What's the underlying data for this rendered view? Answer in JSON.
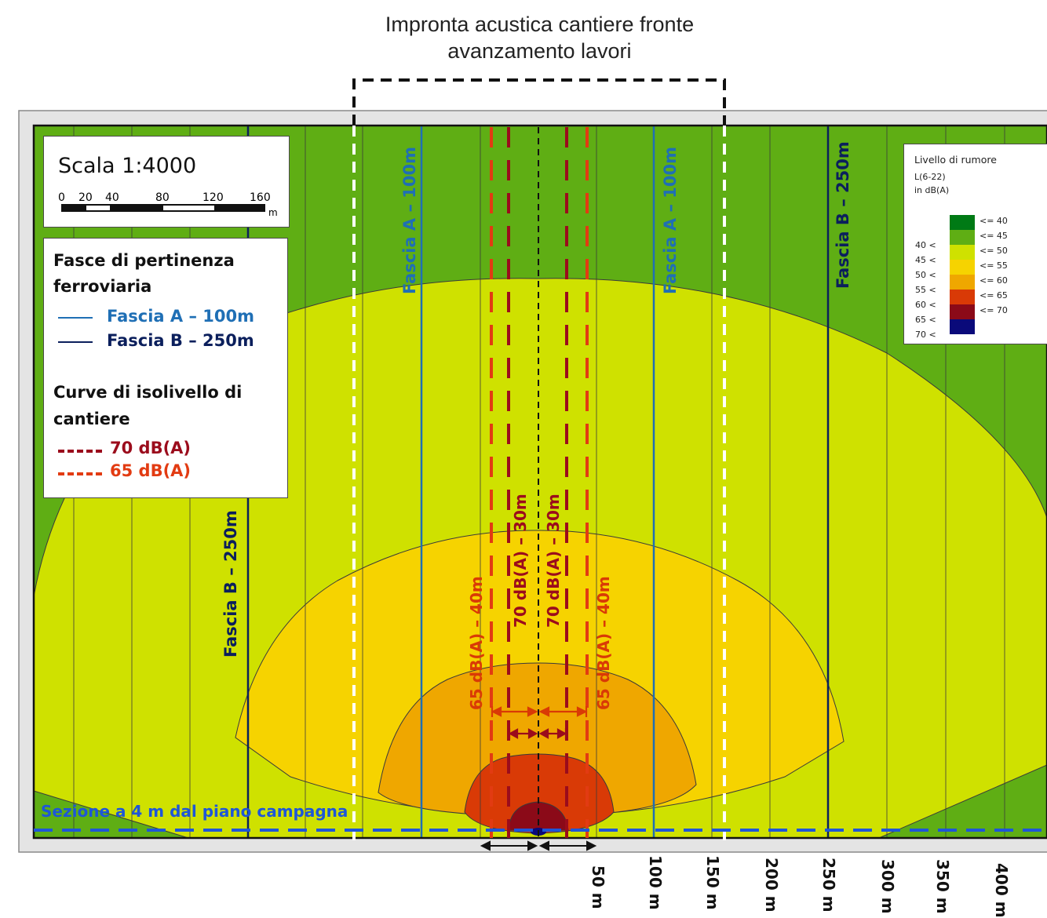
{
  "title_line1": "Impronta acustica cantiere fronte",
  "title_line2": "avanzamento lavori",
  "scale": {
    "title": "Scala 1:4000",
    "ticks": [
      "0",
      "20",
      "40",
      "80",
      "120",
      "160"
    ],
    "unit": "m"
  },
  "legend": {
    "heading_line1": "Fasce di pertinenza",
    "heading_line2": "ferroviaria",
    "fascia_a": "Fascia A – 100m",
    "fascia_b": "Fascia B – 250m",
    "curves_line1": "Curve di isolivello di",
    "curves_line2": "cantiere",
    "curve_70": "70 dB(A)",
    "curve_65": "65 dB(A)"
  },
  "noise_legend": {
    "title": "Livello di rumore",
    "metric": "L(6-22)",
    "unit": "in dB(A)",
    "classes": [
      {
        "low": "",
        "high": "<= 40",
        "color": "#007a15"
      },
      {
        "low": "40 <",
        "high": "<= 45",
        "color": "#5fae14"
      },
      {
        "low": "45 <",
        "high": "<= 50",
        "color": "#cfe100"
      },
      {
        "low": "50 <",
        "high": "<= 55",
        "color": "#f6d300"
      },
      {
        "low": "55 <",
        "high": "<= 60",
        "color": "#efa700"
      },
      {
        "low": "60 <",
        "high": "<= 65",
        "color": "#d93a06"
      },
      {
        "low": "65 <",
        "high": "<= 70",
        "color": "#8b0a18"
      },
      {
        "low": "70 <",
        "high": "",
        "color": "#0a0a7a"
      }
    ]
  },
  "map_labels": {
    "fascia_a_left": "Fascia A – 100m",
    "fascia_a_right": "Fascia A – 100m",
    "fascia_b_left": "Fascia B – 250m",
    "fascia_b_right": "Fascia B – 250m",
    "iso_65_left": "65 dB(A) – 40m",
    "iso_70_left": "70 dB(A) – 30m",
    "iso_70_right": "70 dB(A) – 30m",
    "iso_65_right": "65 dB(A) – 40m",
    "section": "Sezione a 4 m dal piano campagna"
  },
  "distances": [
    "50 m",
    "100 m",
    "150 m",
    "200 m",
    "250 m",
    "300 m",
    "350 m",
    "400 m"
  ],
  "colors": {
    "fascia_a": "#1f6fb5",
    "fascia_b": "#0b1f5c",
    "curve_70": "#9b0c1c",
    "curve_65": "#e23b12",
    "section": "#1e56d8",
    "label_red": "#d93a06"
  }
}
